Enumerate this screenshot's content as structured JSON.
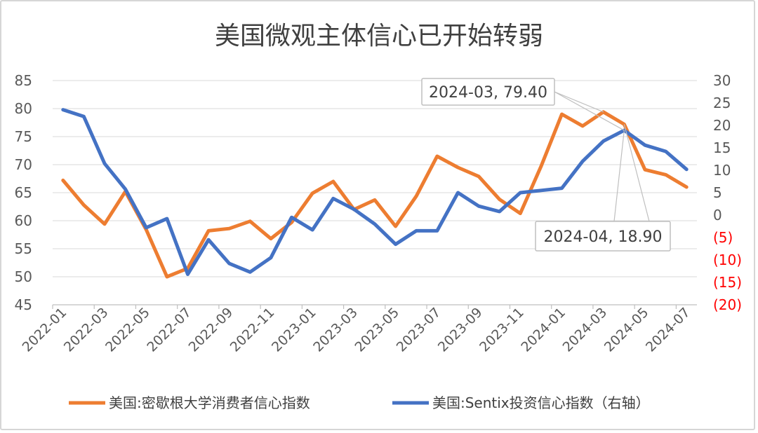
{
  "chart_data": {
    "type": "line",
    "title": "美国微观主体信心已开始转弱",
    "x": [
      "2022-01",
      "2022-02",
      "2022-03",
      "2022-04",
      "2022-05",
      "2022-06",
      "2022-07",
      "2022-08",
      "2022-09",
      "2022-10",
      "2022-11",
      "2022-12",
      "2023-01",
      "2023-02",
      "2023-03",
      "2023-04",
      "2023-05",
      "2023-06",
      "2023-07",
      "2023-08",
      "2023-09",
      "2023-10",
      "2023-11",
      "2023-12",
      "2024-01",
      "2024-02",
      "2024-03",
      "2024-04",
      "2024-05",
      "2024-06",
      "2024-07"
    ],
    "x_tick_labels": [
      "2022-01",
      "2022-03",
      "2022-05",
      "2022-07",
      "2022-09",
      "2022-11",
      "2023-01",
      "2023-03",
      "2023-05",
      "2023-07",
      "2023-09",
      "2023-11",
      "2024-01",
      "2024-03",
      "2024-05",
      "2024-07"
    ],
    "left_axis": {
      "ylim": [
        45,
        85
      ],
      "ticks": [
        "45",
        "50",
        "55",
        "60",
        "65",
        "70",
        "75",
        "80",
        "85"
      ]
    },
    "right_axis": {
      "ylim": [
        -20,
        30
      ],
      "ticks": [
        "(20)",
        "(15)",
        "(10)",
        "(5)",
        "0",
        "5",
        "10",
        "15",
        "20",
        "25",
        "30"
      ],
      "negative_color": "#ff0000"
    },
    "series": [
      {
        "name": "美国:密歇根大学消费者信心指数",
        "axis": "left",
        "color": "#ED7D31",
        "values": [
          67.2,
          62.8,
          59.4,
          65.2,
          58.4,
          50.0,
          51.5,
          58.2,
          58.6,
          59.9,
          56.8,
          59.7,
          64.9,
          67.0,
          62.0,
          63.7,
          59.0,
          64.4,
          71.5,
          69.5,
          67.9,
          63.8,
          61.3,
          69.7,
          79.0,
          76.9,
          79.4,
          77.2,
          69.1,
          68.2,
          66.0
        ]
      },
      {
        "name": "美国:Sentix投资信心指数（右轴）",
        "axis": "right",
        "color": "#4472C4",
        "values": [
          23.5,
          22.0,
          11.5,
          5.8,
          -2.8,
          -0.8,
          -13.2,
          -5.5,
          -10.8,
          -12.7,
          -9.5,
          -0.5,
          -3.3,
          3.7,
          1.3,
          -2.0,
          -6.5,
          -3.5,
          -3.5,
          5.0,
          2.0,
          0.8,
          5.0,
          5.5,
          6.0,
          12.0,
          16.5,
          18.9,
          15.6,
          14.2,
          10.2
        ]
      }
    ],
    "annotations": [
      {
        "text": "2024-03, 79.40",
        "series": 0,
        "index": 26
      },
      {
        "text": "2024-04, 18.90",
        "series": 1,
        "index": 27
      }
    ],
    "legend": "bottom"
  }
}
